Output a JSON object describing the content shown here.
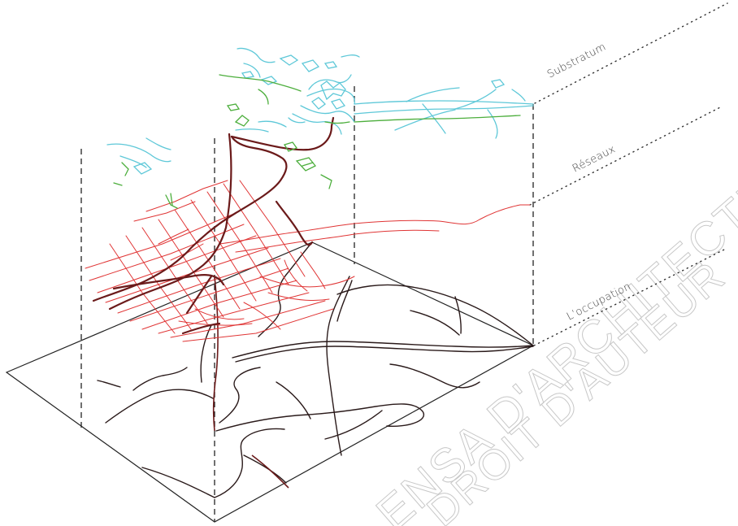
{
  "layers": [
    {
      "id": "substratum",
      "label": "Substratum"
    },
    {
      "id": "reseaux",
      "label": "Réseaux"
    },
    {
      "id": "occupation",
      "label": "L’occupation"
    }
  ],
  "watermark": {
    "line1": "ENSA D'ARCHITECTURE DE NANTES",
    "line2": "DROIT D'AUTEUR"
  },
  "colors": {
    "water": "#5ec8d8",
    "vegetation": "#4cae3c",
    "streets": "#e03535",
    "major_roads": "#6b1a1a",
    "base": "#222222",
    "guides": "#222222"
  }
}
